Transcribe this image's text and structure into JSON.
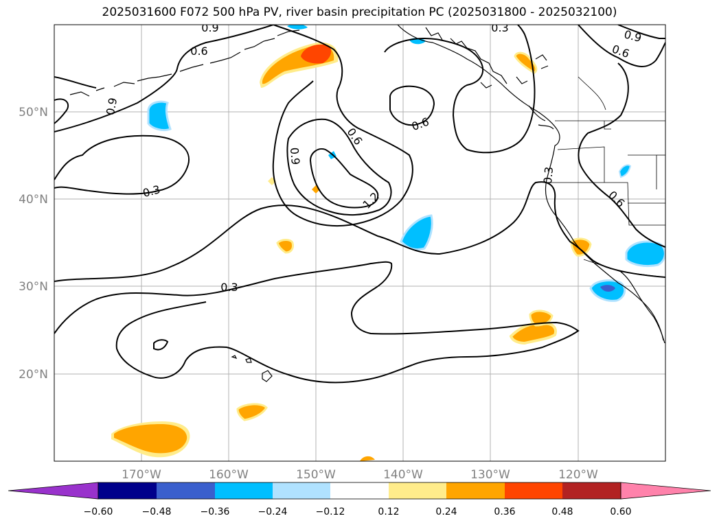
{
  "title": "2025031600 F072 500 hPa PV, river basin precipitation PC (2025031800 - 2025032100)",
  "lon_labels": [
    "170°W",
    "160°W",
    "150°W",
    "140°W",
    "130°W",
    "120°W"
  ],
  "lat_labels": [
    "50°N",
    "40°N",
    "30°N",
    "20°N"
  ],
  "contour_labels": [
    "0.9",
    "0.6",
    "0.3",
    "0.9",
    "0.6",
    "0.9",
    "0.3",
    "0.6",
    "0.6",
    "0.9",
    "1.2",
    "0.3",
    "0.6",
    "0.3"
  ],
  "colorbar": {
    "ticks": [
      "−0.60",
      "−0.48",
      "−0.36",
      "−0.24",
      "−0.12",
      "0.12",
      "0.24",
      "0.36",
      "0.48",
      "0.60"
    ],
    "colors": [
      "#9932cc",
      "#00008b",
      "#3a5fcd",
      "#00bfff",
      "#b0e2ff",
      "#ffffff",
      "#ffec8b",
      "#ffa500",
      "#ff4500",
      "#b22222",
      "#ff82ab"
    ]
  }
}
